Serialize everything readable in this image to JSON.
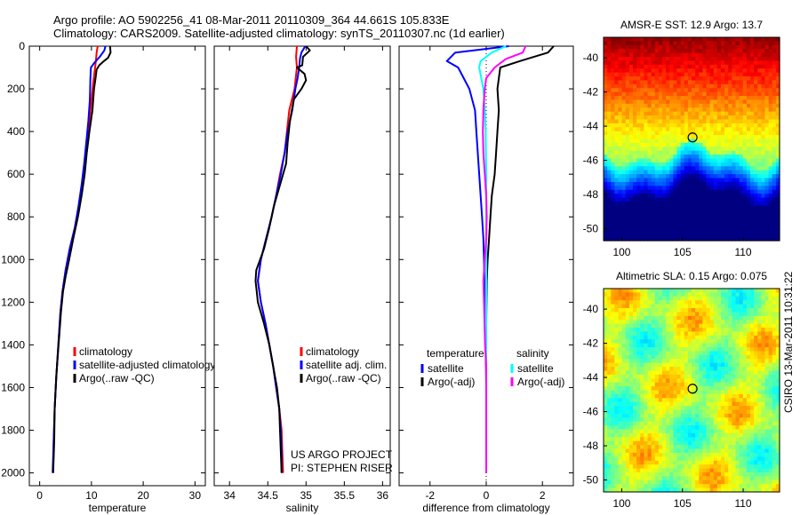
{
  "header": {
    "line1": "Argo profile: AO 5902256_41 08-Mar-2011 20110309_364 44.661S 105.833E",
    "line2": "Climatology: CARS2009. Satellite-adjusted climatology: synTS_20110307.nc (1d earlier)"
  },
  "colors": {
    "red": "#ff0000",
    "blue": "#0000ff",
    "black": "#000000",
    "cyan": "#00ffff",
    "magenta": "#ff00ff"
  },
  "chart_data": [
    {
      "type": "line",
      "panel": "temperature",
      "xlabel": "temperature",
      "xlim": [
        -2,
        32
      ],
      "ylim": [
        0,
        2060
      ],
      "xticks": [
        "0",
        "10",
        "20",
        "30"
      ],
      "yticks": [
        "0",
        "200",
        "400",
        "600",
        "800",
        "1000",
        "1200",
        "1400",
        "1600",
        "1800",
        "2000"
      ],
      "legend": [
        "climatology",
        "satellite-adjusted climatology",
        "Argo(..raw -QC)"
      ],
      "series": [
        {
          "name": "climatology",
          "color": "red",
          "points": [
            [
              11.2,
              0
            ],
            [
              11.0,
              30
            ],
            [
              10.9,
              60
            ],
            [
              10.7,
              100
            ],
            [
              10.4,
              160
            ],
            [
              10.0,
              250
            ],
            [
              9.6,
              350
            ],
            [
              9.2,
              450
            ],
            [
              8.8,
              550
            ],
            [
              8.2,
              650
            ],
            [
              7.6,
              750
            ],
            [
              6.8,
              850
            ],
            [
              5.8,
              950
            ],
            [
              5.0,
              1050
            ],
            [
              4.4,
              1150
            ],
            [
              4.0,
              1250
            ],
            [
              3.6,
              1400
            ],
            [
              3.2,
              1550
            ],
            [
              2.9,
              1700
            ],
            [
              2.7,
              1850
            ],
            [
              2.6,
              2000
            ]
          ]
        },
        {
          "name": "satellite-adjusted climatology",
          "color": "blue",
          "points": [
            [
              12.7,
              0
            ],
            [
              12.5,
              20
            ],
            [
              11.6,
              50
            ],
            [
              10.5,
              80
            ],
            [
              9.9,
              100
            ],
            [
              9.8,
              150
            ],
            [
              9.7,
              250
            ],
            [
              9.4,
              350
            ],
            [
              9.0,
              450
            ],
            [
              8.6,
              550
            ],
            [
              8.1,
              650
            ],
            [
              7.5,
              750
            ],
            [
              6.8,
              850
            ],
            [
              5.8,
              950
            ],
            [
              5.0,
              1050
            ],
            [
              4.4,
              1150
            ],
            [
              4.0,
              1250
            ],
            [
              3.6,
              1400
            ],
            [
              3.2,
              1550
            ],
            [
              2.9,
              1700
            ],
            [
              2.7,
              1850
            ],
            [
              2.5,
              2000
            ]
          ]
        },
        {
          "name": "Argo(..raw -QC)",
          "color": "black",
          "points": [
            [
              13.6,
              0
            ],
            [
              13.7,
              30
            ],
            [
              13.2,
              55
            ],
            [
              12.4,
              70
            ],
            [
              11.5,
              90
            ],
            [
              11.0,
              110
            ],
            [
              10.8,
              150
            ],
            [
              10.5,
              200
            ],
            [
              10.2,
              300
            ],
            [
              9.6,
              400
            ],
            [
              9.1,
              500
            ],
            [
              8.7,
              600
            ],
            [
              8.1,
              700
            ],
            [
              7.4,
              800
            ],
            [
              6.5,
              900
            ],
            [
              5.7,
              1000
            ],
            [
              5.0,
              1080
            ],
            [
              4.5,
              1150
            ],
            [
              4.1,
              1250
            ],
            [
              3.8,
              1350
            ],
            [
              3.5,
              1450
            ],
            [
              3.2,
              1550
            ],
            [
              2.9,
              1700
            ],
            [
              2.8,
              1850
            ],
            [
              2.6,
              2000
            ]
          ]
        }
      ]
    },
    {
      "type": "line",
      "panel": "salinity",
      "xlabel": "salinity",
      "xlim": [
        33.8,
        36.1
      ],
      "ylim": [
        0,
        2060
      ],
      "xticks": [
        "34",
        "34.5",
        "35",
        "35.5",
        "36"
      ],
      "legend": [
        "climatology",
        "satellite adj. clim.",
        "Argo(..raw -QC)"
      ],
      "annotations": [
        "US ARGO PROJECT",
        "PI: STEPHEN RISER"
      ],
      "series": [
        {
          "name": "climatology",
          "color": "red",
          "points": [
            [
              34.88,
              0
            ],
            [
              34.87,
              50
            ],
            [
              34.88,
              100
            ],
            [
              34.85,
              200
            ],
            [
              34.78,
              300
            ],
            [
              34.75,
              400
            ],
            [
              34.72,
              500
            ],
            [
              34.66,
              600
            ],
            [
              34.61,
              700
            ],
            [
              34.55,
              800
            ],
            [
              34.48,
              900
            ],
            [
              34.41,
              1000
            ],
            [
              34.37,
              1100
            ],
            [
              34.41,
              1200
            ],
            [
              34.47,
              1300
            ],
            [
              34.52,
              1400
            ],
            [
              34.57,
              1500
            ],
            [
              34.61,
              1600
            ],
            [
              34.65,
              1700
            ],
            [
              34.68,
              1800
            ],
            [
              34.69,
              1900
            ],
            [
              34.7,
              2000
            ]
          ]
        },
        {
          "name": "satellite adj. clim.",
          "color": "blue",
          "points": [
            [
              34.99,
              0
            ],
            [
              34.94,
              30
            ],
            [
              34.92,
              60
            ],
            [
              34.91,
              100
            ],
            [
              34.89,
              150
            ],
            [
              34.86,
              200
            ],
            [
              34.82,
              300
            ],
            [
              34.76,
              400
            ],
            [
              34.72,
              500
            ],
            [
              34.67,
              600
            ],
            [
              34.61,
              700
            ],
            [
              34.55,
              800
            ],
            [
              34.48,
              900
            ],
            [
              34.41,
              1000
            ],
            [
              34.37,
              1100
            ],
            [
              34.41,
              1200
            ],
            [
              34.47,
              1300
            ],
            [
              34.52,
              1400
            ],
            [
              34.57,
              1500
            ],
            [
              34.61,
              1600
            ],
            [
              34.65,
              1700
            ],
            [
              34.67,
              1800
            ],
            [
              34.68,
              1900
            ],
            [
              34.68,
              2000
            ]
          ]
        },
        {
          "name": "Argo(..raw -QC)",
          "color": "black",
          "points": [
            [
              35.0,
              0
            ],
            [
              35.05,
              20
            ],
            [
              34.96,
              50
            ],
            [
              34.95,
              90
            ],
            [
              34.88,
              100
            ],
            [
              34.98,
              130
            ],
            [
              35.0,
              160
            ],
            [
              34.94,
              200
            ],
            [
              34.84,
              250
            ],
            [
              34.79,
              350
            ],
            [
              34.76,
              450
            ],
            [
              34.74,
              550
            ],
            [
              34.66,
              650
            ],
            [
              34.58,
              750
            ],
            [
              34.52,
              850
            ],
            [
              34.45,
              950
            ],
            [
              34.35,
              1050
            ],
            [
              34.34,
              1100
            ],
            [
              34.37,
              1200
            ],
            [
              34.45,
              1300
            ],
            [
              34.52,
              1400
            ],
            [
              34.57,
              1500
            ],
            [
              34.62,
              1600
            ],
            [
              34.65,
              1700
            ],
            [
              34.66,
              1800
            ],
            [
              34.67,
              1900
            ],
            [
              34.68,
              2000
            ]
          ]
        }
      ]
    },
    {
      "type": "line",
      "panel": "difference",
      "xlabel": "difference from climatology",
      "xlim": [
        -3.1,
        3.1
      ],
      "ylim": [
        0,
        2060
      ],
      "xticks": [
        "-2",
        "0",
        "2"
      ],
      "legend_titles": [
        "temperature",
        "salinity"
      ],
      "legend": [
        "satellite",
        "Argo(-adj)",
        "satellite",
        "Argo(-adj)"
      ],
      "series": [
        {
          "name": "temperature satellite",
          "color": "blue",
          "points": [
            [
              0.8,
              0
            ],
            [
              -1.1,
              30
            ],
            [
              -1.4,
              70
            ],
            [
              -1.0,
              100
            ],
            [
              -0.6,
              200
            ],
            [
              -0.4,
              300
            ],
            [
              -0.35,
              400
            ],
            [
              -0.3,
              500
            ],
            [
              -0.25,
              600
            ],
            [
              -0.2,
              700
            ],
            [
              -0.15,
              800
            ],
            [
              -0.1,
              900
            ],
            [
              -0.08,
              1000
            ],
            [
              -0.05,
              1200
            ],
            [
              -0.02,
              1400
            ],
            [
              0,
              1600
            ],
            [
              0,
              1800
            ],
            [
              0,
              2000
            ]
          ]
        },
        {
          "name": "temperature Argo(-adj)",
          "color": "black",
          "points": [
            [
              2.4,
              0
            ],
            [
              2.2,
              30
            ],
            [
              1.2,
              70
            ],
            [
              0.5,
              100
            ],
            [
              0.4,
              200
            ],
            [
              0.45,
              300
            ],
            [
              0.4,
              400
            ],
            [
              0.35,
              500
            ],
            [
              0.3,
              600
            ],
            [
              0.2,
              700
            ],
            [
              0.15,
              800
            ],
            [
              0.1,
              900
            ],
            [
              0.05,
              1000
            ],
            [
              0.02,
              1100
            ],
            [
              0,
              1300
            ],
            [
              0,
              1500
            ],
            [
              0,
              1700
            ],
            [
              0,
              1900
            ],
            [
              0,
              2000
            ]
          ]
        },
        {
          "name": "salinity satellite",
          "color": "cyan",
          "points": [
            [
              0.7,
              0
            ],
            [
              0.2,
              30
            ],
            [
              -0.2,
              70
            ],
            [
              -0.25,
              100
            ],
            [
              -0.1,
              200
            ],
            [
              -0.05,
              300
            ],
            [
              -0.02,
              400
            ],
            [
              0,
              600
            ],
            [
              0,
              800
            ],
            [
              0,
              1000
            ],
            [
              0,
              1200
            ],
            [
              0,
              1400
            ],
            [
              0,
              1600
            ],
            [
              0,
              1800
            ],
            [
              0,
              2000
            ]
          ]
        },
        {
          "name": "salinity Argo(-adj)",
          "color": "magenta",
          "points": [
            [
              1.4,
              0
            ],
            [
              1.3,
              30
            ],
            [
              0.7,
              60
            ],
            [
              0.3,
              100
            ],
            [
              0.0,
              150
            ],
            [
              -0.05,
              200
            ],
            [
              -0.1,
              300
            ],
            [
              -0.12,
              400
            ],
            [
              -0.1,
              500
            ],
            [
              -0.05,
              600
            ],
            [
              0,
              700
            ],
            [
              0.02,
              800
            ],
            [
              0,
              900
            ],
            [
              -0.05,
              1000
            ],
            [
              -0.1,
              1100
            ],
            [
              -0.08,
              1200
            ],
            [
              -0.06,
              1300
            ],
            [
              -0.04,
              1400
            ],
            [
              0,
              1500
            ],
            [
              0,
              1600
            ],
            [
              0,
              1800
            ],
            [
              0,
              2000
            ]
          ]
        }
      ]
    },
    {
      "type": "heatmap",
      "panel": "sst-map",
      "title": "AMSR-E SST: 12.9 Argo: 13.7",
      "xlim": [
        98.5,
        113.0
      ],
      "ylim": [
        -50.7,
        -38.8
      ],
      "xticks": [
        "100",
        "105",
        "110"
      ],
      "yticks": [
        "-40",
        "-42",
        "-44",
        "-46",
        "-48",
        "-50"
      ],
      "marker": {
        "lon": 105.833,
        "lat": -44.661
      }
    },
    {
      "type": "heatmap",
      "panel": "sla-map",
      "title": "Altimetric SLA: 0.15 Argo: 0.075",
      "xlim": [
        98.5,
        113.0
      ],
      "ylim": [
        -50.7,
        -38.8
      ],
      "xticks": [
        "100",
        "105",
        "110"
      ],
      "yticks": [
        "-40",
        "-42",
        "-44",
        "-46",
        "-48",
        "-50"
      ],
      "marker": {
        "lon": 105.833,
        "lat": -44.661
      }
    }
  ],
  "footer": {
    "stamp": "CSIRO 13-Mar-2011 10:31:22"
  }
}
